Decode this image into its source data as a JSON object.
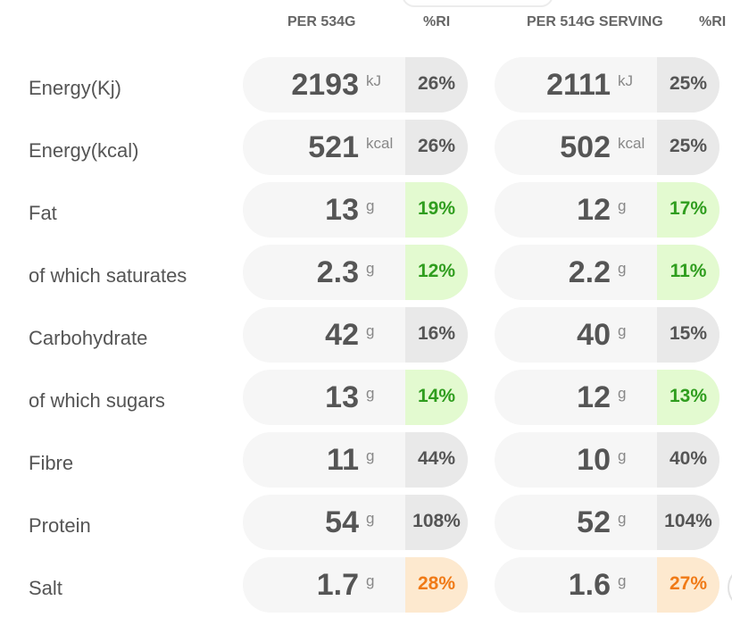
{
  "headers": {
    "per_amount": "PER 534G",
    "ri_1": "%RI",
    "per_serving": "PER 514G SERVING",
    "ri_2": "%RI"
  },
  "rows": [
    {
      "label": "Energy(Kj)",
      "v1": "2193",
      "u1": "kJ",
      "ri1": "26%",
      "c1": "grey",
      "v2": "2111",
      "u2": "kJ",
      "ri2": "25%",
      "c2": "grey"
    },
    {
      "label": "Energy(kcal)",
      "v1": "521",
      "u1": "kcal",
      "ri1": "26%",
      "c1": "grey",
      "v2": "502",
      "u2": "kcal",
      "ri2": "25%",
      "c2": "grey"
    },
    {
      "label": "Fat",
      "v1": "13",
      "u1": "g",
      "ri1": "19%",
      "c1": "green",
      "v2": "12",
      "u2": "g",
      "ri2": "17%",
      "c2": "green"
    },
    {
      "label": "of which saturates",
      "v1": "2.3",
      "u1": "g",
      "ri1": "12%",
      "c1": "green",
      "v2": "2.2",
      "u2": "g",
      "ri2": "11%",
      "c2": "green"
    },
    {
      "label": "Carbohydrate",
      "v1": "42",
      "u1": "g",
      "ri1": "16%",
      "c1": "grey",
      "v2": "40",
      "u2": "g",
      "ri2": "15%",
      "c2": "grey"
    },
    {
      "label": "of which sugars",
      "v1": "13",
      "u1": "g",
      "ri1": "14%",
      "c1": "green",
      "v2": "12",
      "u2": "g",
      "ri2": "13%",
      "c2": "green"
    },
    {
      "label": "Fibre",
      "v1": "11",
      "u1": "g",
      "ri1": "44%",
      "c1": "grey",
      "v2": "10",
      "u2": "g",
      "ri2": "40%",
      "c2": "grey"
    },
    {
      "label": "Protein",
      "v1": "54",
      "u1": "g",
      "ri1": "108%",
      "c1": "grey",
      "v2": "52",
      "u2": "g",
      "ri2": "104%",
      "c2": "grey"
    },
    {
      "label": "Salt",
      "v1": "1.7",
      "u1": "g",
      "ri1": "28%",
      "c1": "orange",
      "v2": "1.6",
      "u2": "g",
      "ri2": "27%",
      "c2": "orange"
    }
  ]
}
